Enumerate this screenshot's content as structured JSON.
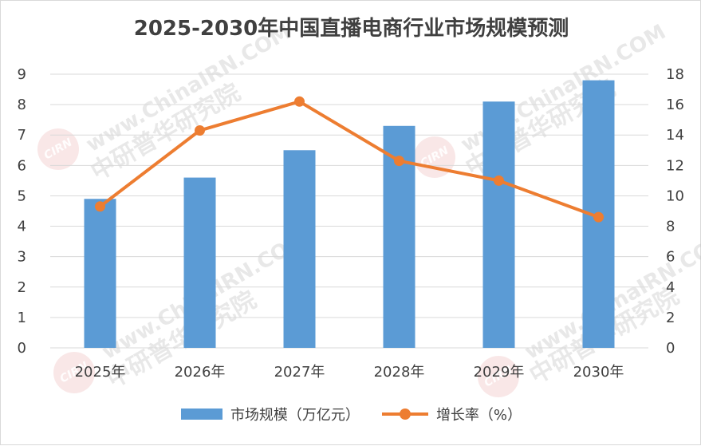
{
  "title": "2025-2030年中国直播电商行业市场规模预测",
  "watermark": {
    "site": "www.ChinaIRN.COM",
    "name": "中研普华研究院",
    "logo": "CIRN"
  },
  "colors": {
    "bar": "#5b9bd5",
    "line": "#ed7d31",
    "grid": "#d9d9d9",
    "text": "#404040"
  },
  "chart_data": {
    "type": "bar",
    "categories": [
      "2025年",
      "2026年",
      "2027年",
      "2028年",
      "2029年",
      "2030年"
    ],
    "series": [
      {
        "name": "市场规模（万亿元）",
        "type": "bar",
        "axis": "left",
        "values": [
          4.9,
          5.6,
          6.5,
          7.3,
          8.1,
          8.8
        ]
      },
      {
        "name": "增长率（%）",
        "type": "line",
        "axis": "right",
        "values": [
          9.3,
          14.3,
          16.2,
          12.3,
          11.0,
          8.6
        ]
      }
    ],
    "y_left": {
      "min": 0,
      "max": 9,
      "ticks": [
        "0",
        "1",
        "2",
        "3",
        "4",
        "5",
        "6",
        "7",
        "8",
        "9"
      ]
    },
    "y_right": {
      "min": 0,
      "max": 18,
      "ticks": [
        "0",
        "2",
        "4",
        "6",
        "8",
        "10",
        "12",
        "14",
        "16",
        "18"
      ]
    },
    "grid": true,
    "legend": "bottom"
  }
}
